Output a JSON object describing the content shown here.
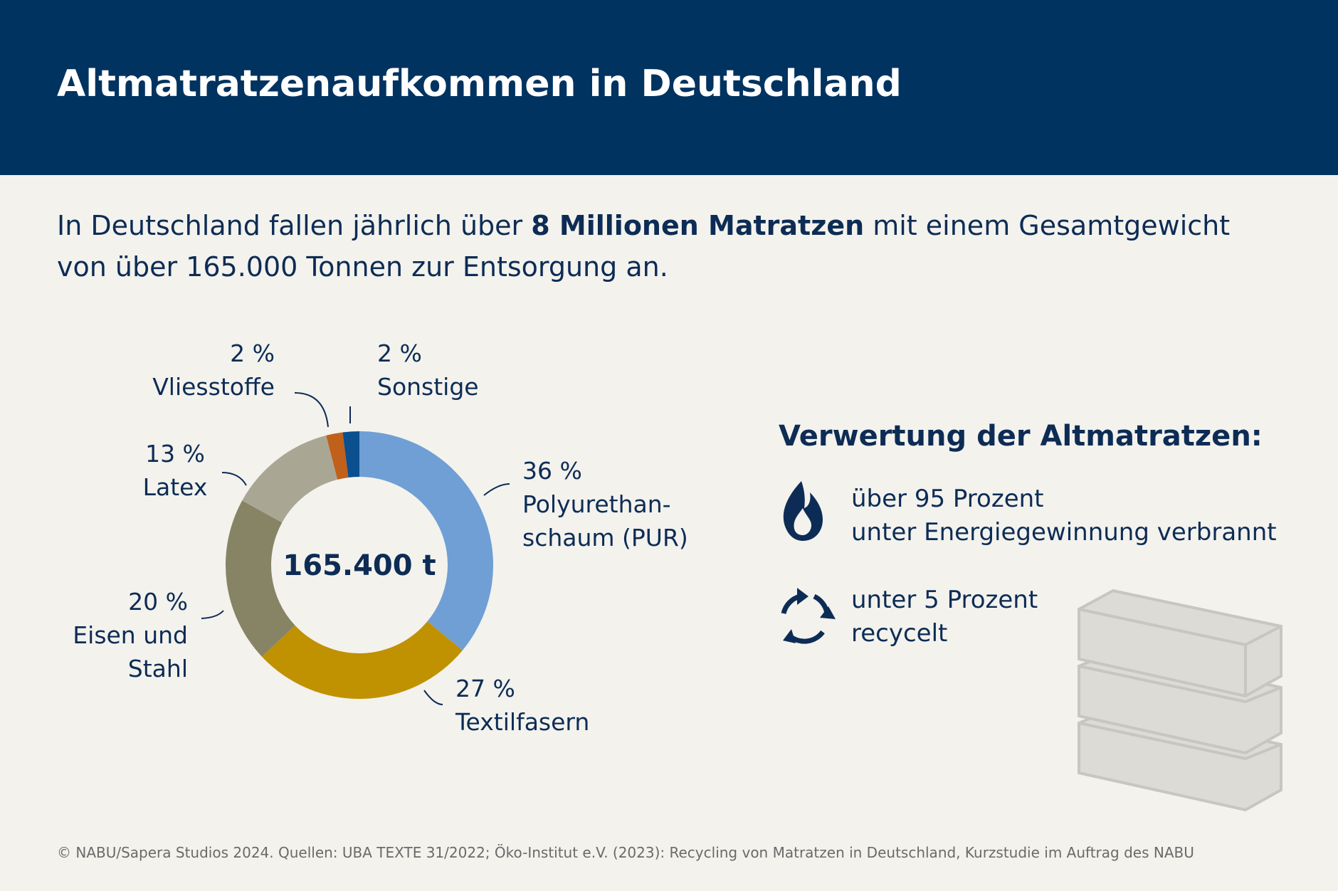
{
  "header": {
    "title": "Altmatratzenaufkommen in Deutschland"
  },
  "intro": [
    "In Deutschland fallen jährlich über ",
    "8 Millionen Matratzen",
    " mit einem Gesamtgewicht von über 165.000 Tonnen zur Entsorgung an."
  ],
  "chart_data": {
    "type": "donut",
    "categories": [
      "Polyurethan-\nschaum (PUR)",
      "Textilfasern",
      "Eisen und\nStahl",
      "Latex",
      "Vliesstoffe",
      "Sonstige"
    ],
    "values": [
      36,
      27,
      20,
      13,
      2,
      2
    ],
    "value_labels": [
      "36 %",
      "27 %",
      "20 %",
      "13 %",
      "2 %",
      "2 %"
    ],
    "colors": [
      "#6f9fd5",
      "#c09100",
      "#878466",
      "#a9a794",
      "#c0601a",
      "#0b4f8f"
    ],
    "center_label": "165.400 t"
  },
  "verwertung": {
    "title": "Verwertung der Altmatratzen:",
    "items": [
      "über 95 Prozent\nunter Energiegewinnung verbrannt",
      "unter 5 Prozent\nrecycelt"
    ]
  },
  "footer": "© NABU/Sapera Studios 2024. Quellen: UBA TEXTE 31/2022; Öko-Institut e.V. (2023): Recycling von Matratzen in Deutschland, Kurzstudie im Auftrag des NABU"
}
